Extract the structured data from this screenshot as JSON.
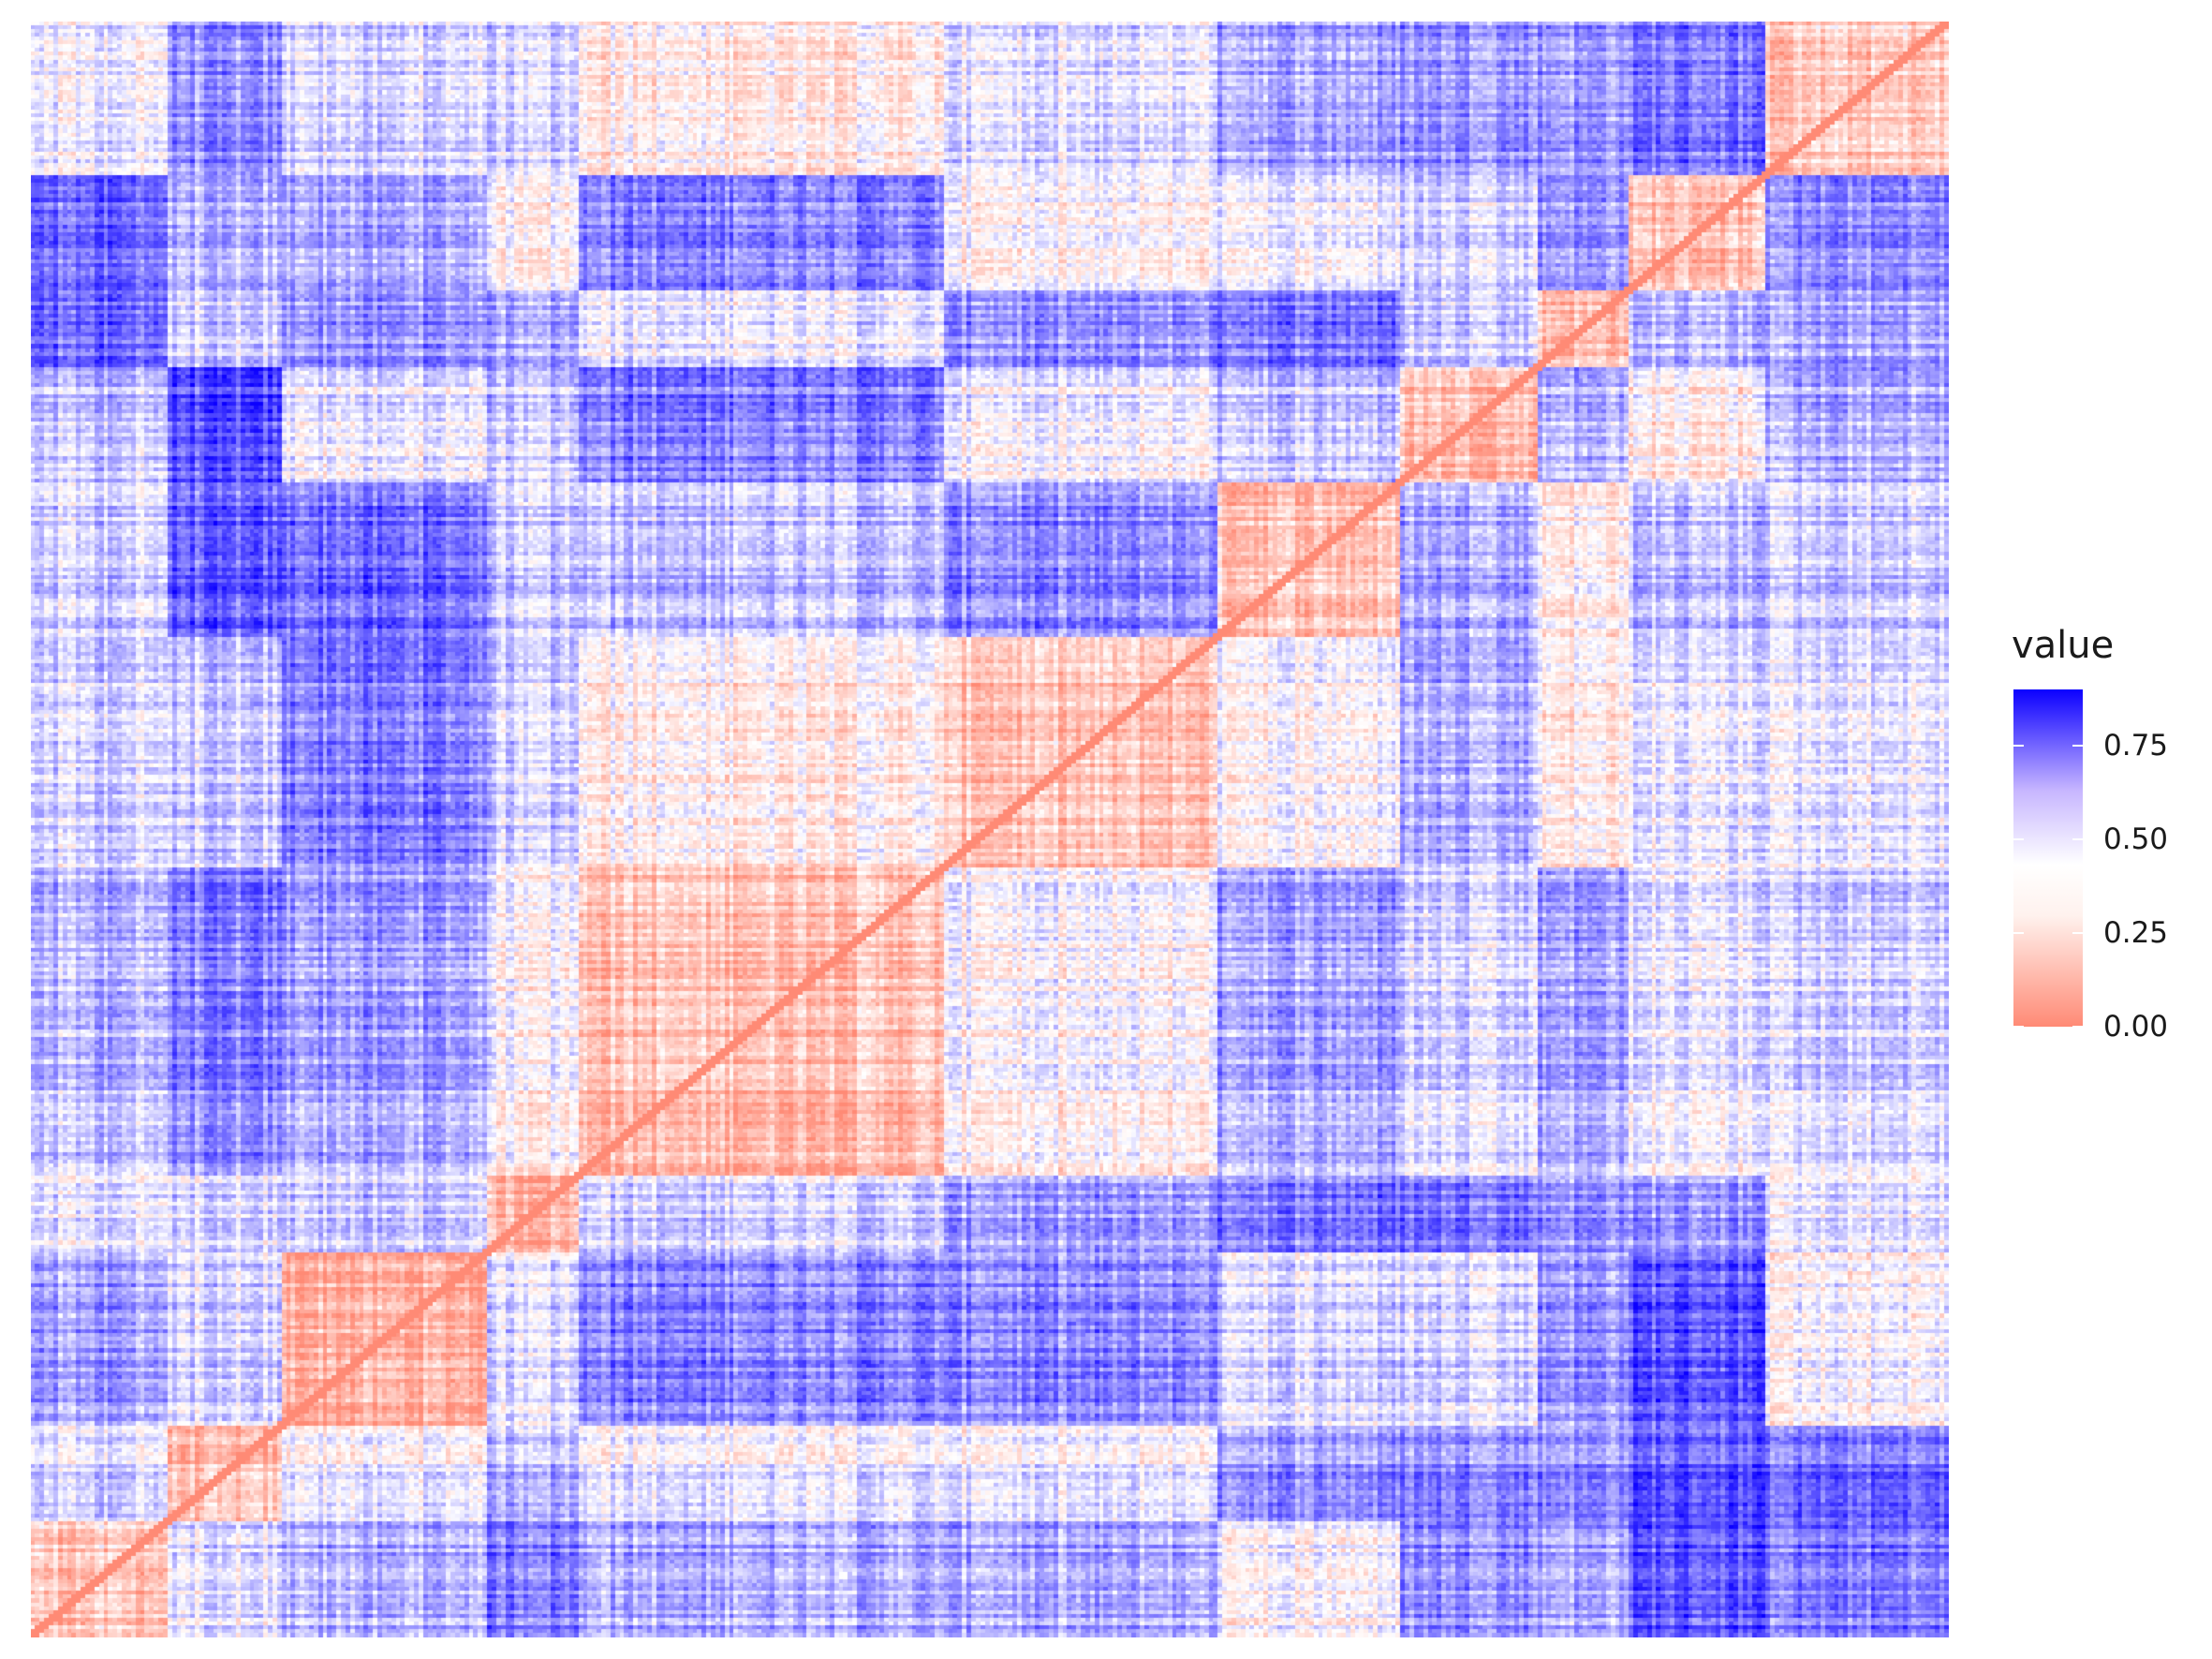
{
  "chart_data": {
    "type": "heatmap",
    "title": "",
    "xlabel": "",
    "ylabel": "",
    "matrix_description_values": {
      "value_range": [
        0,
        0.9
      ],
      "diagonal_value": 0.0,
      "symmetric": false
    },
    "legend": {
      "title": "value",
      "position": "right",
      "ticks": [
        "0.00",
        "0.25",
        "0.50",
        "0.75"
      ],
      "tick_values": [
        0.0,
        0.25,
        0.5,
        0.75
      ],
      "colors": {
        "low": "#ff8a75",
        "mid": "#ffffff",
        "high": "#0b00ff"
      },
      "midpoint": 0.35,
      "limits": [
        0,
        0.9
      ]
    },
    "grid": false,
    "axes_visible": false
  }
}
